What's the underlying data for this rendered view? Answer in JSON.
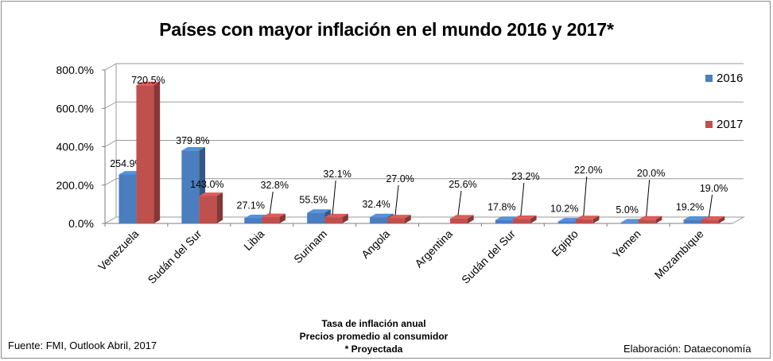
{
  "chart_data": {
    "type": "bar",
    "title": "Países con mayor inflación en el mundo 2016 y 2017*",
    "categories": [
      "Venezuela",
      "Sudán del Sur",
      "Libia",
      "Surinam",
      "Angola",
      "Argentina",
      "Sudán del Sur",
      "Egipto",
      "Yemen",
      "Mozambique"
    ],
    "series": [
      {
        "name": "2016",
        "color": "#4a7ebf",
        "values": [
          254.9,
          379.8,
          27.1,
          55.5,
          32.4,
          null,
          17.8,
          10.2,
          5.0,
          19.2
        ],
        "labels": [
          "254.9%",
          "379.8%",
          "27.1%",
          "55.5%",
          "32.4%",
          "",
          "17.8%",
          "10.2%",
          "5.0%",
          "19.2%"
        ]
      },
      {
        "name": "2017",
        "color": "#c0504d",
        "values": [
          720.5,
          143.0,
          32.8,
          32.1,
          27.0,
          25.6,
          23.2,
          22.0,
          20.0,
          19.0
        ],
        "labels": [
          "720.5%",
          "143.0%",
          "32.8%",
          "32.1%",
          "27.0%",
          "25.6%",
          "23.2%",
          "22.0%",
          "20.0%",
          "19.0%"
        ]
      }
    ],
    "ylim": [
      0,
      800
    ],
    "yticks": [
      0,
      200,
      400,
      600,
      800
    ],
    "ytick_labels": [
      "0.0%",
      "200.0%",
      "400.0%",
      "600.0%",
      "800.0%"
    ],
    "xlabel": "",
    "ylabel": "",
    "grid": true,
    "legend": "right",
    "style": "3d-clustered-bar"
  },
  "footer": {
    "source": "Fuente: FMI, Outlook Abril, 2017",
    "note_line1": "Tasa de inflación anual",
    "note_line2": "Precios promedio al consumidor",
    "note_line3": "* Proyectada",
    "credit": "Elaboración: Dataeconomía"
  }
}
